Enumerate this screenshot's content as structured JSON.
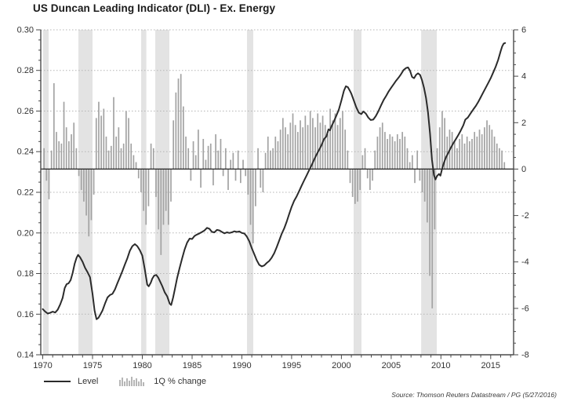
{
  "title": "US Duncan Leading Indicator (DLI) - Ex. Energy",
  "source_note": "Source: Thomson Reuters Datastream / PG (5/27/2016)",
  "legend": {
    "items": [
      {
        "label": "Level",
        "icon": "line-swatch-icon"
      },
      {
        "label": "1Q % change",
        "icon": "bars-swatch-icon"
      }
    ]
  },
  "colors": {
    "bar": "#a3a3a3",
    "line": "#2b2b2b",
    "band": "#e3e3e3",
    "grid": "#b5b5b5",
    "axis": "#4a4a4a",
    "zero_line": "#222222",
    "tick_text": "#333333",
    "title_text": "#1a1a1a"
  },
  "chart_data": {
    "type": "line+bar",
    "title": "US Duncan Leading Indicator (DLI) - Ex. Energy",
    "x_axis": {
      "min": 1969.8,
      "max": 2017.3,
      "label_years": [
        1970,
        1975,
        1980,
        1985,
        1990,
        1995,
        2000,
        2005,
        2010,
        2015
      ],
      "minor_tick_step": 1
    },
    "left_axis": {
      "name": "Level",
      "min": 0.14,
      "max": 0.3,
      "major_tick_step": 0.02,
      "minor_tick_step": 0.005,
      "tick_labels": [
        "0.30",
        "0.28",
        "0.26",
        "0.24",
        "0.22",
        "0.20",
        "0.18",
        "0.16",
        "0.14"
      ]
    },
    "right_axis": {
      "name": "1Q % change",
      "min": -8,
      "max": 6,
      "major_tick_step": 2,
      "minor_tick_step": 0.5,
      "tick_labels": [
        "6",
        "4",
        "2",
        "0",
        "-2",
        "-4",
        "-6",
        "-8"
      ]
    },
    "grid": "dotted horizontal lines at left-axis major ticks",
    "legend_position": "bottom-left",
    "recession_bands": [
      [
        1970.04,
        1970.59
      ],
      [
        1973.58,
        1975.0
      ],
      [
        1979.88,
        1980.4
      ],
      [
        1981.3,
        1982.72
      ],
      [
        1990.52,
        1991.15
      ],
      [
        2001.23,
        2002.02
      ],
      [
        2008.01,
        2009.58
      ]
    ],
    "series": [
      {
        "name": "Level",
        "type": "line",
        "axis": "left",
        "points": [
          [
            1970.0,
            0.1625
          ],
          [
            1970.25,
            0.1612
          ],
          [
            1970.5,
            0.1603
          ],
          [
            1970.75,
            0.1607
          ],
          [
            1971.0,
            0.1612
          ],
          [
            1971.25,
            0.1608
          ],
          [
            1971.5,
            0.1622
          ],
          [
            1971.75,
            0.1648
          ],
          [
            1972.0,
            0.168
          ],
          [
            1972.2,
            0.1728
          ],
          [
            1972.4,
            0.1748
          ],
          [
            1972.6,
            0.1752
          ],
          [
            1972.8,
            0.1768
          ],
          [
            1973.0,
            0.1802
          ],
          [
            1973.2,
            0.1848
          ],
          [
            1973.4,
            0.1878
          ],
          [
            1973.55,
            0.1892
          ],
          [
            1973.75,
            0.188
          ],
          [
            1974.0,
            0.1858
          ],
          [
            1974.25,
            0.1828
          ],
          [
            1974.5,
            0.1806
          ],
          [
            1974.75,
            0.1782
          ],
          [
            1975.0,
            0.17
          ],
          [
            1975.2,
            0.1618
          ],
          [
            1975.4,
            0.1575
          ],
          [
            1975.6,
            0.1582
          ],
          [
            1975.8,
            0.16
          ],
          [
            1976.0,
            0.1618
          ],
          [
            1976.25,
            0.1652
          ],
          [
            1976.5,
            0.1682
          ],
          [
            1976.75,
            0.1694
          ],
          [
            1977.0,
            0.17
          ],
          [
            1977.25,
            0.1722
          ],
          [
            1977.5,
            0.1752
          ],
          [
            1977.75,
            0.1782
          ],
          [
            1978.0,
            0.1812
          ],
          [
            1978.25,
            0.1845
          ],
          [
            1978.5,
            0.1875
          ],
          [
            1978.75,
            0.1912
          ],
          [
            1979.0,
            0.1935
          ],
          [
            1979.25,
            0.1945
          ],
          [
            1979.5,
            0.1935
          ],
          [
            1979.75,
            0.1915
          ],
          [
            1980.0,
            0.1888
          ],
          [
            1980.25,
            0.182
          ],
          [
            1980.5,
            0.1745
          ],
          [
            1980.65,
            0.1737
          ],
          [
            1980.85,
            0.1755
          ],
          [
            1981.0,
            0.1775
          ],
          [
            1981.2,
            0.179
          ],
          [
            1981.4,
            0.1793
          ],
          [
            1981.6,
            0.178
          ],
          [
            1981.8,
            0.176
          ],
          [
            1982.0,
            0.1738
          ],
          [
            1982.25,
            0.1708
          ],
          [
            1982.5,
            0.1688
          ],
          [
            1982.75,
            0.1652
          ],
          [
            1982.9,
            0.1645
          ],
          [
            1983.1,
            0.1682
          ],
          [
            1983.3,
            0.173
          ],
          [
            1983.5,
            0.1778
          ],
          [
            1983.75,
            0.1828
          ],
          [
            1984.0,
            0.1875
          ],
          [
            1984.25,
            0.1918
          ],
          [
            1984.5,
            0.1952
          ],
          [
            1984.75,
            0.1972
          ],
          [
            1985.0,
            0.197
          ],
          [
            1985.25,
            0.1985
          ],
          [
            1985.5,
            0.1992
          ],
          [
            1985.75,
            0.1998
          ],
          [
            1986.0,
            0.2005
          ],
          [
            1986.25,
            0.2012
          ],
          [
            1986.5,
            0.2025
          ],
          [
            1986.75,
            0.202
          ],
          [
            1987.0,
            0.2005
          ],
          [
            1987.25,
            0.2003
          ],
          [
            1987.5,
            0.2015
          ],
          [
            1987.75,
            0.2012
          ],
          [
            1988.0,
            0.2005
          ],
          [
            1988.25,
            0.1998
          ],
          [
            1988.5,
            0.2003
          ],
          [
            1988.75,
            0.2
          ],
          [
            1989.0,
            0.2003
          ],
          [
            1989.25,
            0.2008
          ],
          [
            1989.5,
            0.2005
          ],
          [
            1989.75,
            0.2007
          ],
          [
            1990.0,
            0.2
          ],
          [
            1990.25,
            0.1997
          ],
          [
            1990.5,
            0.1982
          ],
          [
            1990.75,
            0.1958
          ],
          [
            1991.0,
            0.1925
          ],
          [
            1991.25,
            0.1895
          ],
          [
            1991.5,
            0.1865
          ],
          [
            1991.75,
            0.1843
          ],
          [
            1992.0,
            0.1835
          ],
          [
            1992.25,
            0.184
          ],
          [
            1992.5,
            0.1852
          ],
          [
            1992.75,
            0.1862
          ],
          [
            1993.0,
            0.1878
          ],
          [
            1993.25,
            0.19
          ],
          [
            1993.5,
            0.193
          ],
          [
            1993.75,
            0.1962
          ],
          [
            1994.0,
            0.1995
          ],
          [
            1994.25,
            0.2022
          ],
          [
            1994.5,
            0.2055
          ],
          [
            1994.75,
            0.2092
          ],
          [
            1995.0,
            0.2128
          ],
          [
            1995.25,
            0.2158
          ],
          [
            1995.5,
            0.218
          ],
          [
            1995.75,
            0.2205
          ],
          [
            1996.0,
            0.2232
          ],
          [
            1996.25,
            0.2258
          ],
          [
            1996.5,
            0.2282
          ],
          [
            1996.75,
            0.2308
          ],
          [
            1997.0,
            0.2332
          ],
          [
            1997.25,
            0.236
          ],
          [
            1997.5,
            0.2385
          ],
          [
            1997.75,
            0.2408
          ],
          [
            1998.0,
            0.2432
          ],
          [
            1998.25,
            0.2462
          ],
          [
            1998.5,
            0.2475
          ],
          [
            1998.7,
            0.251
          ],
          [
            1998.85,
            0.2505
          ],
          [
            1999.0,
            0.2525
          ],
          [
            1999.25,
            0.255
          ],
          [
            1999.5,
            0.2578
          ],
          [
            1999.75,
            0.2608
          ],
          [
            2000.0,
            0.2652
          ],
          [
            2000.25,
            0.27
          ],
          [
            2000.45,
            0.2722
          ],
          [
            2000.65,
            0.2718
          ],
          [
            2000.85,
            0.27
          ],
          [
            2001.0,
            0.2685
          ],
          [
            2001.25,
            0.2652
          ],
          [
            2001.5,
            0.2618
          ],
          [
            2001.75,
            0.2592
          ],
          [
            2002.0,
            0.2585
          ],
          [
            2002.2,
            0.2598
          ],
          [
            2002.45,
            0.2588
          ],
          [
            2002.7,
            0.2568
          ],
          [
            2002.95,
            0.2556
          ],
          [
            2003.2,
            0.2558
          ],
          [
            2003.45,
            0.2575
          ],
          [
            2003.7,
            0.2598
          ],
          [
            2004.0,
            0.263
          ],
          [
            2004.25,
            0.2655
          ],
          [
            2004.5,
            0.2675
          ],
          [
            2004.75,
            0.2697
          ],
          [
            2005.0,
            0.2715
          ],
          [
            2005.25,
            0.2732
          ],
          [
            2005.5,
            0.275
          ],
          [
            2005.75,
            0.2765
          ],
          [
            2006.0,
            0.2782
          ],
          [
            2006.25,
            0.2802
          ],
          [
            2006.5,
            0.2812
          ],
          [
            2006.7,
            0.2815
          ],
          [
            2006.9,
            0.2798
          ],
          [
            2007.1,
            0.2768
          ],
          [
            2007.3,
            0.2762
          ],
          [
            2007.5,
            0.2778
          ],
          [
            2007.7,
            0.2786
          ],
          [
            2007.9,
            0.2778
          ],
          [
            2008.1,
            0.2752
          ],
          [
            2008.3,
            0.2715
          ],
          [
            2008.5,
            0.2665
          ],
          [
            2008.7,
            0.2595
          ],
          [
            2008.9,
            0.249
          ],
          [
            2009.1,
            0.236
          ],
          [
            2009.3,
            0.2285
          ],
          [
            2009.45,
            0.2263
          ],
          [
            2009.6,
            0.228
          ],
          [
            2009.8,
            0.229
          ],
          [
            2009.95,
            0.2282
          ],
          [
            2010.1,
            0.2312
          ],
          [
            2010.3,
            0.2345
          ],
          [
            2010.5,
            0.2372
          ],
          [
            2010.75,
            0.2395
          ],
          [
            2011.0,
            0.242
          ],
          [
            2011.25,
            0.2442
          ],
          [
            2011.5,
            0.2462
          ],
          [
            2011.75,
            0.2482
          ],
          [
            2012.0,
            0.2505
          ],
          [
            2012.25,
            0.253
          ],
          [
            2012.45,
            0.2558
          ],
          [
            2012.7,
            0.2568
          ],
          [
            2013.0,
            0.259
          ],
          [
            2013.25,
            0.2608
          ],
          [
            2013.5,
            0.2625
          ],
          [
            2013.75,
            0.2645
          ],
          [
            2014.0,
            0.2668
          ],
          [
            2014.25,
            0.2692
          ],
          [
            2014.5,
            0.2715
          ],
          [
            2014.75,
            0.2738
          ],
          [
            2015.0,
            0.2762
          ],
          [
            2015.25,
            0.279
          ],
          [
            2015.5,
            0.2818
          ],
          [
            2015.75,
            0.2852
          ],
          [
            2016.0,
            0.2895
          ],
          [
            2016.15,
            0.2918
          ],
          [
            2016.3,
            0.2932
          ],
          [
            2016.45,
            0.2935
          ]
        ]
      },
      {
        "name": "1Q % change",
        "type": "bar",
        "axis": "right",
        "start": "1970Q1",
        "end": "2016Q2",
        "frequency": "quarterly",
        "values": [
          0.9,
          -0.5,
          -1.3,
          0.8,
          3.7,
          1.6,
          1.2,
          1.1,
          2.9,
          1.8,
          1.2,
          1.5,
          2.0,
          0.9,
          -0.3,
          -0.9,
          -1.4,
          -2.0,
          -2.9,
          -2.2,
          -1.1,
          2.2,
          2.9,
          2.3,
          2.6,
          1.4,
          0.8,
          1.0,
          3.1,
          1.4,
          1.8,
          0.9,
          1.1,
          2.5,
          2.2,
          1.1,
          0.6,
          0.3,
          -0.4,
          -1.0,
          -1.8,
          -2.4,
          -1.6,
          1.1,
          0.9,
          -1.2,
          -2.6,
          -3.7,
          -2.4,
          -1.8,
          -2.4,
          -1.4,
          2.1,
          3.3,
          3.9,
          4.1,
          2.7,
          1.4,
          0.9,
          -0.5,
          1.2,
          0.6,
          1.7,
          -0.8,
          1.3,
          0.4,
          1.0,
          1.1,
          -0.7,
          1.5,
          0.8,
          1.3,
          -0.3,
          0.9,
          -0.9,
          0.4,
          0.7,
          -0.5,
          0.8,
          -0.6,
          0.4,
          -0.3,
          -1.1,
          -2.4,
          -3.2,
          -1.6,
          0.9,
          -0.8,
          -1.0,
          0.7,
          1.4,
          0.8,
          0.9,
          1.4,
          1.2,
          1.7,
          2.2,
          1.8,
          1.5,
          2.0,
          2.4,
          1.9,
          1.6,
          2.1,
          1.8,
          2.3,
          1.9,
          2.5,
          2.2,
          1.8,
          2.4,
          2.0,
          2.3,
          1.9,
          1.5,
          2.6,
          2.1,
          2.4,
          1.9,
          2.2,
          2.5,
          1.7,
          0.8,
          -0.6,
          -1.2,
          -1.5,
          -1.4,
          -0.9,
          0.6,
          0.9,
          -0.4,
          -0.9,
          -0.5,
          0.8,
          1.4,
          1.8,
          2.0,
          1.6,
          1.3,
          1.5,
          1.4,
          1.2,
          1.5,
          1.3,
          1.6,
          1.4,
          0.9,
          0.3,
          0.6,
          -0.6,
          0.8,
          -0.5,
          -1.0,
          -1.4,
          -2.3,
          -4.6,
          -6.0,
          -2.6,
          0.9,
          1.8,
          2.5,
          2.2,
          1.4,
          1.7,
          1.6,
          1.2,
          0.9,
          1.3,
          1.5,
          1.1,
          1.4,
          1.2,
          1.3,
          1.6,
          1.4,
          1.7,
          1.5,
          1.8,
          2.1,
          1.9,
          1.7,
          1.4,
          1.1,
          0.9,
          0.8,
          0.3
        ]
      }
    ]
  }
}
